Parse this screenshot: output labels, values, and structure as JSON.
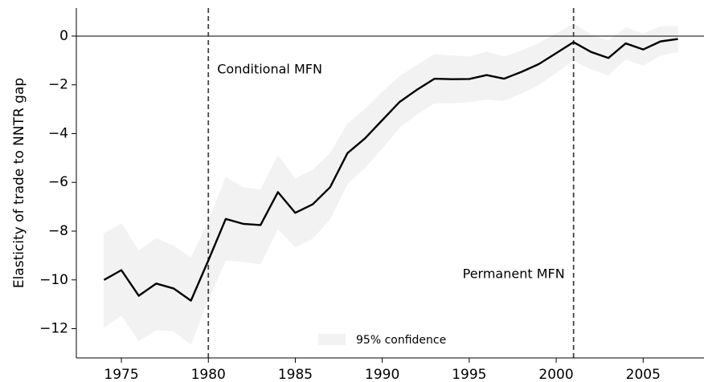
{
  "chart_data": {
    "type": "line",
    "ylabel": "Elasticity of trade to NNTR gap",
    "x": [
      1974,
      1975,
      1976,
      1977,
      1978,
      1979,
      1980,
      1981,
      1982,
      1983,
      1984,
      1985,
      1986,
      1987,
      1988,
      1989,
      1990,
      1991,
      1992,
      1993,
      1994,
      1995,
      1996,
      1997,
      1998,
      1999,
      2000,
      2001,
      2002,
      2003,
      2004,
      2005,
      2006,
      2007
    ],
    "series": [
      {
        "color": "#000000",
        "values": [
          -10.0,
          -9.6,
          -10.65,
          -10.15,
          -10.35,
          -10.85,
          -9.2,
          -7.5,
          -7.7,
          -7.75,
          -6.4,
          -7.25,
          -6.9,
          -6.2,
          -4.8,
          -4.2,
          -3.45,
          -2.7,
          -2.2,
          -1.75,
          -1.77,
          -1.76,
          -1.6,
          -1.75,
          -1.47,
          -1.15,
          -0.7,
          -0.25,
          -0.65,
          -0.9,
          -0.3,
          -0.55,
          -0.22,
          -0.12
        ]
      }
    ],
    "band": {
      "name": "95% confidence",
      "color": "#f2f2f2",
      "upper": [
        -8.1,
        -7.7,
        -8.8,
        -8.3,
        -8.6,
        -9.1,
        -7.6,
        -5.8,
        -6.2,
        -6.3,
        -4.9,
        -5.85,
        -5.5,
        -4.8,
        -3.6,
        -3.0,
        -2.3,
        -1.65,
        -1.2,
        -0.75,
        -0.8,
        -0.85,
        -0.65,
        -0.85,
        -0.6,
        -0.3,
        0.1,
        0.5,
        0.05,
        -0.2,
        0.35,
        0.1,
        0.4,
        0.4
      ],
      "lower": [
        -11.95,
        -11.45,
        -12.5,
        -12.05,
        -12.1,
        -12.65,
        -10.8,
        -9.2,
        -9.25,
        -9.35,
        -7.9,
        -8.65,
        -8.3,
        -7.5,
        -6.05,
        -5.4,
        -4.6,
        -3.75,
        -3.2,
        -2.75,
        -2.75,
        -2.7,
        -2.6,
        -2.65,
        -2.35,
        -2.0,
        -1.5,
        -1.0,
        -1.35,
        -1.6,
        -0.95,
        -1.2,
        -0.8,
        -0.65
      ]
    },
    "vlines": [
      1980,
      2001
    ],
    "hline": 0,
    "annotations": [
      "Conditional MFN",
      "Permanent MFN"
    ],
    "xlim": [
      1972.41,
      2008.5
    ],
    "xticks": [
      1975,
      1980,
      1985,
      1990,
      1995,
      2000,
      2005
    ],
    "ylim": [
      -13.2,
      1.15
    ],
    "yticks": [
      {
        "value": -12,
        "label": "−12"
      },
      {
        "value": -10,
        "label": "−10"
      },
      {
        "value": -8,
        "label": "−8"
      },
      {
        "value": -6,
        "label": "−6"
      },
      {
        "value": -4,
        "label": "−4"
      },
      {
        "value": -2,
        "label": "−2"
      },
      0
    ]
  }
}
